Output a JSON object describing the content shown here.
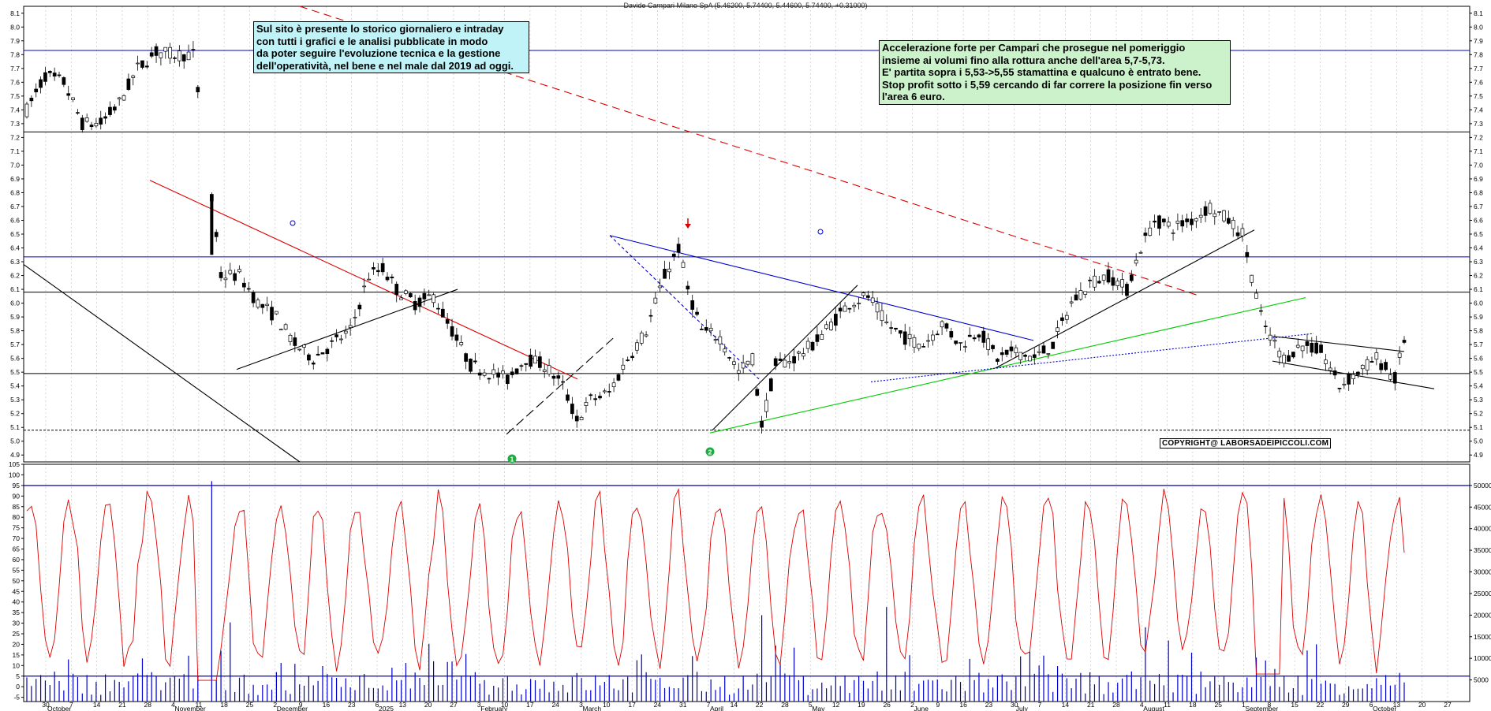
{
  "chart_title": "Davide Campari Milano SpA (5.46200, 5.74400, 5.44600, 5.74400, +0.31000)",
  "note_left": [
    "Sul sito è presente lo storico giornaliero e intraday",
    "con tutti i grafici e le analisi pubblicate in modo",
    "da poter seguire l'evoluzione tecnica e la gestione",
    "dell'operatività, nel bene e nel male dal 2019 ad oggi."
  ],
  "note_right": [
    "Accelerazione forte per Campari che prosegue nel pomeriggio",
    "insieme ai volumi fino alla rottura anche dell'area 5,7-5,73.",
    "E' partita sopra i 5,53->5,55 stamattina e qualcuno è entrato bene.",
    "Stop profit sotto i 5,59 cercando di far correre la posizione fin verso",
    "l'area 6 euro."
  ],
  "copyright": "COPYRIGHT@ LABORSADEIPICCOLI.COM",
  "chart_data": {
    "type": "candlestick",
    "price_panel": {
      "ylim": [
        4.85,
        8.15
      ],
      "yticks": [
        "4.9",
        "5.0",
        "5.1",
        "5.2",
        "5.3",
        "5.4",
        "5.5",
        "5.6",
        "5.7",
        "5.8",
        "5.9",
        "6.0",
        "6.1",
        "6.2",
        "6.3",
        "6.4",
        "6.5",
        "6.6",
        "6.7",
        "6.8",
        "6.9",
        "7.0",
        "7.1",
        "7.2",
        "7.3",
        "7.4",
        "7.5",
        "7.6",
        "7.7",
        "7.8",
        "7.9",
        "8.0",
        "8.1"
      ],
      "horizontal_levels": [
        {
          "y": 7.83,
          "color": "#0000cc",
          "style": "solid"
        },
        {
          "y": 7.24,
          "color": "#000000",
          "style": "solid"
        },
        {
          "y": 6.335,
          "color": "#0000cc",
          "style": "solid"
        },
        {
          "y": 6.08,
          "color": "#000000",
          "style": "solid"
        },
        {
          "y": 5.49,
          "color": "#000000",
          "style": "solid"
        },
        {
          "y": 5.08,
          "color": "#000000",
          "style": "dashed"
        }
      ],
      "markers": [
        {
          "label": "1",
          "color": "#22aa44"
        },
        {
          "label": "2",
          "color": "#22aa44"
        }
      ]
    },
    "indicator_panel": {
      "ylim": [
        -7,
        105
      ],
      "yticks_left": [
        "-5",
        "0",
        "5",
        "10",
        "15",
        "20",
        "25",
        "30",
        "35",
        "40",
        "45",
        "50",
        "55",
        "60",
        "65",
        "70",
        "75",
        "80",
        "85",
        "90",
        "95",
        "100",
        "105"
      ],
      "yticks_right": [
        "5000",
        "10000",
        "15000",
        "20000",
        "25000",
        "30000",
        "35000",
        "40000",
        "45000",
        "50000"
      ],
      "right_axis_max": 51000,
      "levels": [
        95,
        5
      ],
      "line_color": "#dd0000",
      "volume_color": "#0000cc"
    },
    "x_axis": {
      "day_labels": [
        "30",
        "7",
        "14",
        "21",
        "28",
        "4",
        "11",
        "18",
        "25",
        "2",
        "9",
        "16",
        "23",
        "6",
        "13",
        "20",
        "27",
        "3",
        "10",
        "17",
        "24",
        "3",
        "10",
        "17",
        "24",
        "31",
        "7",
        "14",
        "22",
        "28",
        "5",
        "12",
        "19",
        "26",
        "2",
        "9",
        "16",
        "23",
        "30",
        "7",
        "14",
        "21",
        "28",
        "4",
        "11",
        "18",
        "25",
        "1",
        "8",
        "15",
        "22",
        "29",
        "6",
        "13",
        "20",
        "27"
      ],
      "month_labels": [
        "October",
        "November",
        "December",
        "2025",
        "February",
        "March",
        "April",
        "May",
        "June",
        "July",
        "August",
        "September",
        "October"
      ]
    }
  }
}
